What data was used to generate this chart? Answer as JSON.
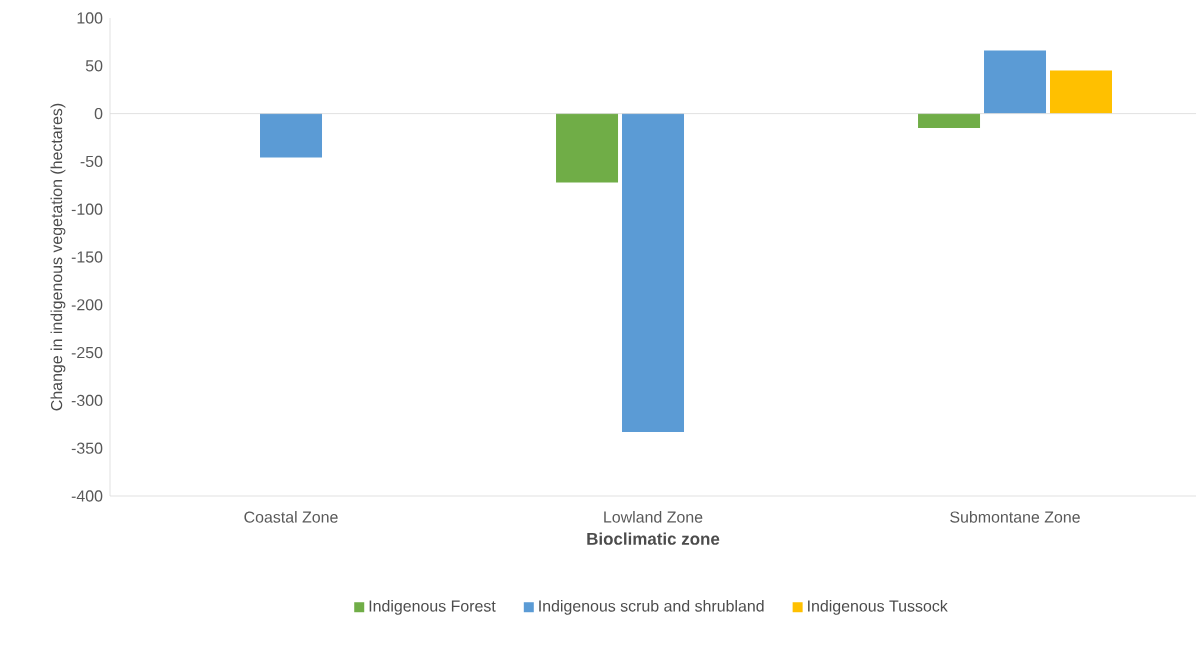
{
  "chart_data": {
    "type": "bar",
    "xlabel": "Bioclimatic zone",
    "ylabel": "Change in indigenous vegetation (hectares)",
    "categories": [
      "Coastal Zone",
      "Lowland Zone",
      "Submontane Zone"
    ],
    "series": [
      {
        "name": "Indigenous Forest",
        "color": "#70ad47",
        "values": [
          null,
          -72,
          -15
        ]
      },
      {
        "name": "Indigenous scrub and shrubland",
        "color": "#5b9bd5",
        "values": [
          -46,
          -333,
          66
        ]
      },
      {
        "name": "Indigenous Tussock",
        "color": "#ffc000",
        "values": [
          null,
          null,
          45
        ]
      }
    ],
    "ylim": [
      -400,
      100
    ],
    "yticks": [
      -400,
      -350,
      -300,
      -250,
      -200,
      -150,
      -100,
      -50,
      0,
      50,
      100
    ],
    "legend": "bottom"
  }
}
